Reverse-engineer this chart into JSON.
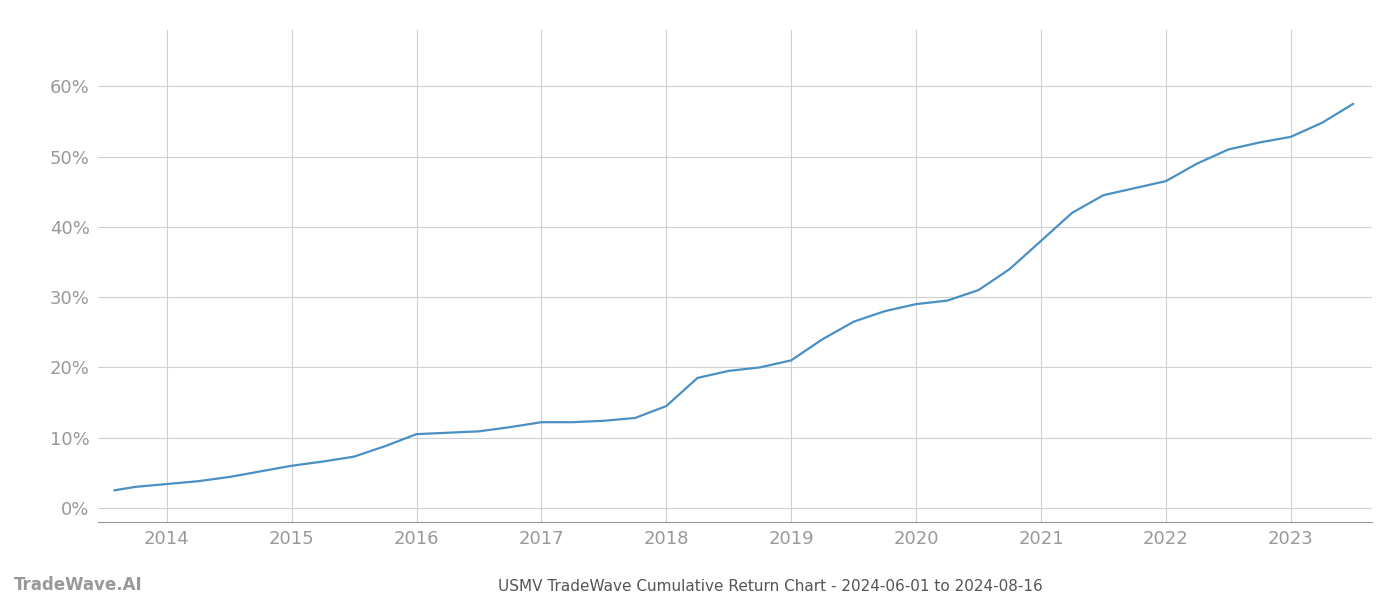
{
  "title": "USMV TradeWave Cumulative Return Chart - 2024-06-01 to 2024-08-16",
  "watermark": "TradeWave.AI",
  "line_color": "#4a90c4",
  "background_color": "#ffffff",
  "grid_color": "#cccccc",
  "x_years": [
    2014,
    2015,
    2016,
    2017,
    2018,
    2019,
    2020,
    2021,
    2022,
    2023
  ],
  "x_data": [
    2013.58,
    2013.75,
    2014.0,
    2014.25,
    2014.5,
    2014.75,
    2015.0,
    2015.25,
    2015.5,
    2015.75,
    2016.0,
    2016.25,
    2016.5,
    2016.75,
    2017.0,
    2017.25,
    2017.5,
    2017.75,
    2018.0,
    2018.25,
    2018.5,
    2018.75,
    2019.0,
    2019.25,
    2019.5,
    2019.75,
    2020.0,
    2020.25,
    2020.5,
    2020.75,
    2021.0,
    2021.25,
    2021.5,
    2021.75,
    2022.0,
    2022.25,
    2022.5,
    2022.75,
    2023.0,
    2023.25,
    2023.5
  ],
  "y_data": [
    0.025,
    0.03,
    0.034,
    0.038,
    0.044,
    0.052,
    0.06,
    0.066,
    0.073,
    0.088,
    0.105,
    0.107,
    0.109,
    0.115,
    0.122,
    0.122,
    0.124,
    0.128,
    0.145,
    0.185,
    0.195,
    0.2,
    0.21,
    0.24,
    0.265,
    0.28,
    0.29,
    0.295,
    0.31,
    0.34,
    0.38,
    0.42,
    0.445,
    0.455,
    0.465,
    0.49,
    0.51,
    0.52,
    0.528,
    0.548,
    0.575
  ],
  "ylim": [
    -0.02,
    0.68
  ],
  "yticks": [
    0.0,
    0.1,
    0.2,
    0.3,
    0.4,
    0.5,
    0.6
  ],
  "xlim": [
    2013.45,
    2023.65
  ],
  "title_fontsize": 11,
  "watermark_fontsize": 12,
  "tick_fontsize": 13,
  "axis_color": "#999999",
  "title_color": "#555555"
}
